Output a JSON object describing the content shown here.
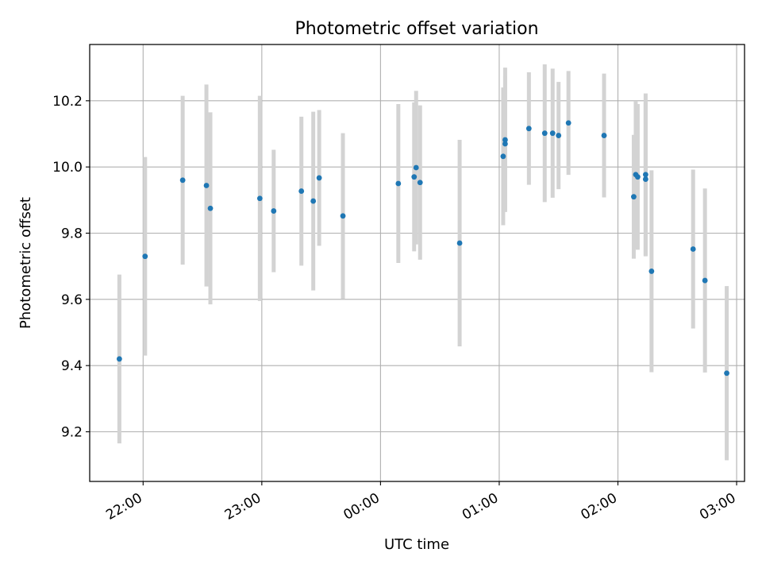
{
  "chart_data": {
    "type": "scatter",
    "title": "Photometric offset variation",
    "xlabel": "UTC time",
    "ylabel": "Photometric offset",
    "x_ticks": [
      "22:00",
      "23:00",
      "00:00",
      "01:00",
      "02:00",
      "03:00"
    ],
    "y_ticks": [
      "9.2",
      "9.4",
      "9.6",
      "9.8",
      "10.0",
      "10.2"
    ],
    "xlim": [
      "21:33",
      "03:04"
    ],
    "ylim": [
      9.05,
      10.37
    ],
    "grid": true,
    "colors": {
      "point": "#1f77b4",
      "errorbar": "#d3d3d3",
      "grid": "#b0b0b0"
    },
    "points": [
      {
        "t": "21:48",
        "y": 9.42,
        "err": 0.255
      },
      {
        "t": "22:01",
        "y": 9.73,
        "err": 0.3
      },
      {
        "t": "22:20",
        "y": 9.96,
        "err": 0.255
      },
      {
        "t": "22:32",
        "y": 9.944,
        "err": 0.305
      },
      {
        "t": "22:34",
        "y": 9.875,
        "err": 0.29
      },
      {
        "t": "22:59",
        "y": 9.905,
        "err": 0.31
      },
      {
        "t": "23:06",
        "y": 9.867,
        "err": 0.185
      },
      {
        "t": "23:20",
        "y": 9.927,
        "err": 0.225
      },
      {
        "t": "23:26",
        "y": 9.897,
        "err": 0.27
      },
      {
        "t": "23:29",
        "y": 9.967,
        "err": 0.205
      },
      {
        "t": "23:41",
        "y": 9.852,
        "err": 0.25
      },
      {
        "t": "00:09",
        "y": 9.95,
        "err": 0.24
      },
      {
        "t": "00:17",
        "y": 9.97,
        "err": 0.225
      },
      {
        "t": "00:18",
        "y": 9.998,
        "err": 0.232
      },
      {
        "t": "00:20",
        "y": 9.953,
        "err": 0.233
      },
      {
        "t": "00:40",
        "y": 9.77,
        "err": 0.312
      },
      {
        "t": "01:02",
        "y": 10.032,
        "err": 0.208
      },
      {
        "t": "01:03",
        "y": 10.07,
        "err": 0.205
      },
      {
        "t": "01:03",
        "y": 10.082,
        "err": 0.218
      },
      {
        "t": "01:15",
        "y": 10.116,
        "err": 0.17
      },
      {
        "t": "01:23",
        "y": 10.102,
        "err": 0.208
      },
      {
        "t": "01:27",
        "y": 10.102,
        "err": 0.195
      },
      {
        "t": "01:30",
        "y": 10.095,
        "err": 0.162
      },
      {
        "t": "01:35",
        "y": 10.133,
        "err": 0.157
      },
      {
        "t": "01:53",
        "y": 10.095,
        "err": 0.187
      },
      {
        "t": "02:08",
        "y": 9.91,
        "err": 0.187
      },
      {
        "t": "02:09",
        "y": 9.977,
        "err": 0.223
      },
      {
        "t": "02:10",
        "y": 9.97,
        "err": 0.22
      },
      {
        "t": "02:14",
        "y": 9.977,
        "err": 0.245
      },
      {
        "t": "02:14",
        "y": 9.963,
        "err": 0.233
      },
      {
        "t": "02:17",
        "y": 9.685,
        "err": 0.305
      },
      {
        "t": "02:38",
        "y": 9.752,
        "err": 0.24
      },
      {
        "t": "02:44",
        "y": 9.657,
        "err": 0.278
      },
      {
        "t": "02:55",
        "y": 9.377,
        "err": 0.263
      }
    ]
  }
}
